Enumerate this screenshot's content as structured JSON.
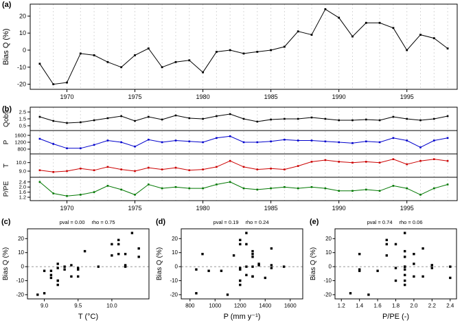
{
  "figure": {
    "background": "#ffffff"
  },
  "chart_data": [
    {
      "id": "a",
      "type": "line",
      "panel_label": "(a)",
      "ylabel": "Bias Q (%)",
      "xlim": [
        1967.3,
        1998.7
      ],
      "ylim": [
        -23,
        27
      ],
      "xticks": [
        1970,
        1975,
        1980,
        1985,
        1990,
        1995
      ],
      "yticks": [
        -20,
        -10,
        0,
        10,
        20
      ],
      "grid": "vertical-dashed",
      "x": [
        1968,
        1969,
        1970,
        1971,
        1972,
        1973,
        1974,
        1975,
        1976,
        1977,
        1978,
        1979,
        1980,
        1981,
        1982,
        1983,
        1984,
        1985,
        1986,
        1987,
        1988,
        1989,
        1990,
        1991,
        1992,
        1993,
        1994,
        1995,
        1996,
        1997,
        1998
      ],
      "series": [
        {
          "name": "Bias Q",
          "color": "#000000",
          "values": [
            -8,
            -20,
            -19,
            -2,
            -3,
            -7,
            -10,
            -3,
            1,
            -10,
            -7,
            -6,
            -13,
            -1,
            0,
            -2,
            -1,
            0,
            2,
            11,
            9,
            24,
            19,
            8,
            16,
            16,
            13,
            0,
            9,
            7,
            1
          ]
        }
      ]
    },
    {
      "id": "b",
      "type": "stacked-lines",
      "panel_label": "(b)",
      "xlim": [
        1967.3,
        1998.7
      ],
      "xticks": [
        1970,
        1975,
        1980,
        1985,
        1990,
        1995
      ],
      "grid": "vertical-dashed",
      "x": [
        1968,
        1969,
        1970,
        1971,
        1972,
        1973,
        1974,
        1975,
        1976,
        1977,
        1978,
        1979,
        1980,
        1981,
        1982,
        1983,
        1984,
        1985,
        1986,
        1987,
        1988,
        1989,
        1990,
        1991,
        1992,
        1993,
        1994,
        1995,
        1996,
        1997,
        1998
      ],
      "bands": [
        {
          "name": "Qobs",
          "color": "#000000",
          "ylim": [
            0.2,
            2.8
          ],
          "ticks": [
            0.5,
            1.5,
            2.5
          ],
          "tick_labels": [
            "0.5",
            "1.5",
            "2.5"
          ],
          "values": [
            1.8,
            1.2,
            0.9,
            1.0,
            1.3,
            1.6,
            1.9,
            1.2,
            1.8,
            1.4,
            2.0,
            1.6,
            1.5,
            1.9,
            2.2,
            1.5,
            1.1,
            1.4,
            1.5,
            1.5,
            1.7,
            1.5,
            1.3,
            1.3,
            1.4,
            1.3,
            1.8,
            1.5,
            1.3,
            1.5,
            1.9
          ]
        },
        {
          "name": "P",
          "color": "#0000cc",
          "ylim": [
            680,
            1720
          ],
          "ticks": [
            800,
            1200,
            1600
          ],
          "tick_labels": [
            "800",
            "1200",
            "1600"
          ],
          "values": [
            1400,
            1100,
            850,
            850,
            1050,
            1300,
            1200,
            950,
            1350,
            1200,
            1300,
            1250,
            1200,
            1450,
            1550,
            1200,
            1200,
            1250,
            1350,
            1300,
            1300,
            1250,
            1200,
            1150,
            1250,
            1200,
            1450,
            1300,
            900,
            1300,
            1450
          ]
        },
        {
          "name": "T",
          "color": "#cc0000",
          "ylim": [
            8.6,
            10.7
          ],
          "ticks": [
            9,
            10
          ],
          "tick_labels": [
            "9.0",
            "10.0"
          ],
          "values": [
            9.1,
            8.9,
            9.0,
            9.3,
            9.1,
            9.5,
            9.2,
            9.0,
            9.4,
            9.2,
            9.4,
            9.1,
            9.2,
            9.5,
            10.2,
            9.5,
            9.2,
            9.3,
            9.2,
            9.6,
            10.1,
            10.3,
            10.1,
            10.0,
            10.1,
            10.0,
            10.4,
            9.8,
            10.2,
            10.4,
            10.2
          ]
        },
        {
          "name": "P/PE",
          "color": "#007700",
          "ylim": [
            1.15,
            2.55
          ],
          "ticks": [
            1.2,
            1.6,
            2.0,
            2.4
          ],
          "tick_labels": [
            "1.2",
            "1.6",
            "2.0",
            "2.4"
          ],
          "values": [
            2.4,
            1.5,
            1.3,
            1.4,
            1.6,
            2.1,
            1.8,
            1.4,
            2.2,
            1.9,
            2.0,
            1.9,
            1.9,
            2.2,
            2.4,
            1.9,
            1.8,
            1.9,
            2.0,
            1.9,
            2.0,
            1.9,
            1.7,
            1.7,
            1.8,
            1.7,
            2.1,
            1.9,
            1.4,
            1.9,
            2.2
          ]
        }
      ]
    },
    {
      "id": "c",
      "type": "scatter",
      "panel_label": "(c)",
      "pval_text": "pval = 0.00",
      "rho_text": "rho = 0.75",
      "xlabel": "T (°C)",
      "ylabel": "Bias Q (%)",
      "xlim": [
        8.75,
        10.55
      ],
      "ylim": [
        -23,
        27
      ],
      "xticks": [
        9.0,
        9.5,
        10.0
      ],
      "xtick_labels": [
        "9.0",
        "9.5",
        "10.0"
      ],
      "yticks": [
        -20,
        -10,
        0,
        10,
        20
      ],
      "refline_y": 0,
      "marker_color": "#000000",
      "x": [
        9.1,
        8.9,
        9.0,
        9.3,
        9.1,
        9.5,
        9.2,
        9.0,
        9.4,
        9.2,
        9.4,
        9.1,
        9.2,
        9.5,
        10.2,
        9.5,
        9.2,
        9.3,
        9.2,
        9.6,
        10.1,
        10.3,
        10.1,
        10.0,
        10.1,
        10.0,
        10.4,
        9.8,
        10.2,
        10.4,
        10.2
      ],
      "y": [
        -8,
        -20,
        -19,
        -2,
        -3,
        -7,
        -10,
        -3,
        1,
        -10,
        -7,
        -6,
        -13,
        -1,
        0,
        -2,
        -1,
        0,
        2,
        11,
        9,
        24,
        19,
        8,
        16,
        16,
        13,
        0,
        9,
        7,
        1
      ]
    },
    {
      "id": "d",
      "type": "scatter",
      "panel_label": "(d)",
      "pval_text": "pval = 0.19",
      "rho_text": "rho = 0.24",
      "xlabel": "P (mm y⁻¹)",
      "ylabel": "Bias Q (%)",
      "xlim": [
        730,
        1700
      ],
      "ylim": [
        -23,
        27
      ],
      "xticks": [
        800,
        1000,
        1200,
        1400,
        1600
      ],
      "xtick_labels": [
        "800",
        "1000",
        "1200",
        "1400",
        "1600"
      ],
      "yticks": [
        -20,
        -10,
        0,
        10,
        20
      ],
      "refline_y": 0,
      "marker_color": "#000000",
      "x": [
        1400,
        1100,
        850,
        850,
        1050,
        1300,
        1200,
        950,
        1350,
        1200,
        1300,
        1250,
        1200,
        1450,
        1550,
        1200,
        1200,
        1250,
        1350,
        1300,
        1300,
        1250,
        1200,
        1150,
        1250,
        1200,
        1450,
        1300,
        900,
        1300,
        1450
      ],
      "y": [
        -8,
        -20,
        -19,
        -2,
        -3,
        -7,
        -10,
        -3,
        1,
        -10,
        -7,
        -6,
        -13,
        -1,
        0,
        -2,
        -1,
        0,
        2,
        11,
        9,
        24,
        19,
        8,
        16,
        16,
        13,
        0,
        9,
        7,
        1
      ]
    },
    {
      "id": "e",
      "type": "scatter",
      "panel_label": "(e)",
      "pval_text": "pval = 0.74",
      "rho_text": "rho = 0.06",
      "xlabel": "P/PE (-)",
      "ylabel": "Bias Q (%)",
      "xlim": [
        1.13,
        2.47
      ],
      "ylim": [
        -23,
        27
      ],
      "xticks": [
        1.2,
        1.4,
        1.6,
        1.8,
        2.0,
        2.2,
        2.4
      ],
      "xtick_labels": [
        "1.2",
        "1.4",
        "1.6",
        "1.8",
        "2.0",
        "2.2",
        "2.4"
      ],
      "yticks": [
        -20,
        -10,
        0,
        10,
        20
      ],
      "refline_y": 0,
      "marker_color": "#000000",
      "x": [
        2.4,
        1.5,
        1.3,
        1.4,
        1.6,
        2.1,
        1.8,
        1.4,
        2.2,
        1.9,
        2.0,
        1.9,
        1.9,
        2.2,
        2.4,
        1.9,
        1.8,
        1.9,
        2.0,
        1.9,
        2.0,
        1.9,
        1.7,
        1.7,
        1.8,
        1.7,
        2.1,
        1.9,
        1.4,
        1.9,
        2.2
      ],
      "y": [
        -8,
        -20,
        -19,
        -2,
        -3,
        -7,
        -10,
        -3,
        1,
        -10,
        -7,
        -6,
        -13,
        -1,
        0,
        -2,
        -1,
        0,
        2,
        11,
        9,
        24,
        19,
        8,
        16,
        16,
        13,
        0,
        9,
        7,
        1
      ]
    }
  ]
}
